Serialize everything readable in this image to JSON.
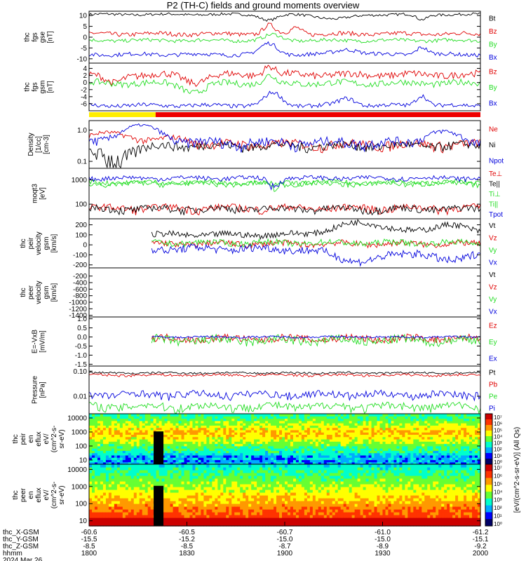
{
  "title": "P2 (TH-C) fields and ground moments overview",
  "colors": {
    "black": "#000000",
    "red": "#e00000",
    "green": "#22dd22",
    "blue": "#0000dd"
  },
  "status_bar": [
    {
      "color": "#ffee00",
      "from_fraction": 0.0,
      "to_fraction": 0.17
    },
    {
      "color": "#ee0000",
      "from_fraction": 0.17,
      "to_fraction": 1.0
    }
  ],
  "chart_data": [
    {
      "type": "line",
      "id": "fgs_gse",
      "ylabel": [
        "thc",
        "fgs",
        "gse",
        "[nT]"
      ],
      "ylim": [
        -12,
        12
      ],
      "scale": "linear",
      "yticks": [
        {
          "v": 10,
          "label": "10"
        },
        {
          "v": 5,
          "label": "5"
        },
        {
          "v": 0,
          "label": "0"
        },
        {
          "v": -5,
          "label": "-5"
        },
        {
          "v": -10,
          "label": "-10"
        }
      ],
      "series": [
        {
          "name": "Bt",
          "color": "#000000",
          "base": 10.5,
          "amp": 0.6,
          "events": [
            {
              "t": 0.46,
              "d": -2.5,
              "w": 0.03
            },
            {
              "t": 0.63,
              "d": -2.0,
              "w": 0.06
            },
            {
              "t": 0.85,
              "d": -2.5,
              "w": 0.02
            }
          ]
        },
        {
          "name": "Bz",
          "color": "#e00000",
          "base": 1.5,
          "amp": 1.0,
          "events": [
            {
              "t": 0.46,
              "d": 4.0,
              "w": 0.02
            },
            {
              "t": 0.53,
              "d": 3.0,
              "w": 0.02
            }
          ]
        },
        {
          "name": "By",
          "color": "#22dd22",
          "base": -1.5,
          "amp": 0.8,
          "events": [
            {
              "t": 0.47,
              "d": 2.5,
              "w": 0.03
            }
          ]
        },
        {
          "name": "Bx",
          "color": "#0000dd",
          "base": -8.0,
          "amp": 0.9,
          "events": [
            {
              "t": 0.46,
              "d": 5.0,
              "w": 0.03
            },
            {
              "t": 0.66,
              "d": 2.5,
              "w": 0.04
            },
            {
              "t": 0.85,
              "d": 3.5,
              "w": 0.02
            }
          ]
        }
      ]
    },
    {
      "type": "line",
      "id": "fgs_gsm",
      "ylabel": [
        "thc",
        "fgs",
        "gsm",
        "[nT]"
      ],
      "ylim": [
        -8,
        5.5
      ],
      "scale": "linear",
      "yticks": [
        {
          "v": 4,
          "label": "4"
        },
        {
          "v": 2,
          "label": "2"
        },
        {
          "v": 0,
          "label": "0"
        },
        {
          "v": -2,
          "label": "-2"
        },
        {
          "v": -4,
          "label": "-4"
        },
        {
          "v": -6,
          "label": "-6"
        }
      ],
      "series": [
        {
          "name": "Bz",
          "color": "#e00000",
          "base": 2.2,
          "amp": 1.0,
          "events": [
            {
              "t": 0.06,
              "d": -2.5,
              "w": 0.03
            },
            {
              "t": 0.27,
              "d": -2.0,
              "w": 0.04
            },
            {
              "t": 0.46,
              "d": 2.5,
              "w": 0.02
            }
          ]
        },
        {
          "name": "By",
          "color": "#22dd22",
          "base": -0.2,
          "amp": 0.9,
          "events": [
            {
              "t": 0.27,
              "d": -2.5,
              "w": 0.04
            },
            {
              "t": 0.46,
              "d": 2.0,
              "w": 0.02
            }
          ]
        },
        {
          "name": "Bx",
          "color": "#0000dd",
          "base": -6.5,
          "amp": 0.6,
          "events": [
            {
              "t": 0.47,
              "d": 3.5,
              "w": 0.03
            },
            {
              "t": 0.66,
              "d": 2.0,
              "w": 0.03
            },
            {
              "t": 0.85,
              "d": 3.0,
              "w": 0.02
            }
          ]
        }
      ]
    },
    {
      "type": "line",
      "id": "density",
      "ylabel": [
        "Density",
        "[1/cc]",
        "[cm-3]"
      ],
      "ylim": [
        0.06,
        2.0
      ],
      "scale": "log",
      "yticks": [
        {
          "v": 1.0,
          "label": "1.0"
        },
        {
          "v": 0.1,
          "label": "0.1"
        }
      ],
      "series": [
        {
          "name": "Ne",
          "color": "#e00000",
          "base": 0.35,
          "amp": 0.12,
          "events": [
            {
              "t": 0.05,
              "d": 0.45,
              "w": 0.08
            },
            {
              "t": 0.22,
              "d": 0.2,
              "w": 0.05
            }
          ]
        },
        {
          "name": "Ni",
          "color": "#000000",
          "base": 0.32,
          "amp": 0.1,
          "events": [
            {
              "t": 0.05,
              "d": -0.2,
              "w": 0.08
            }
          ]
        },
        {
          "name": "Npot",
          "color": "#0000dd",
          "base": 0.4,
          "amp": 0.15,
          "events": [
            {
              "t": 0.13,
              "d": 1.0,
              "w": 0.06
            },
            {
              "t": 0.9,
              "d": 0.5,
              "w": 0.05
            }
          ]
        }
      ]
    },
    {
      "type": "line",
      "id": "temperature",
      "ylabel": [
        "moqt3",
        "[eV]"
      ],
      "ylim": [
        25,
        3000
      ],
      "scale": "log",
      "yticks": [
        {
          "v": 1000,
          "label": "1000"
        },
        {
          "v": 100,
          "label": "100"
        }
      ],
      "series": [
        {
          "name": "Te⊥",
          "color": "#e00000",
          "base": 70,
          "amp": 25,
          "events": []
        },
        {
          "name": "Te||",
          "color": "#000000",
          "base": 65,
          "amp": 22,
          "events": []
        },
        {
          "name": "Ti⊥",
          "color": "#22dd22",
          "base": 800,
          "amp": 180,
          "events": [
            {
              "t": 0.47,
              "d": -400,
              "w": 0.02
            }
          ]
        },
        {
          "name": "Ti||",
          "color": "#22dd22",
          "base": 700,
          "amp": 160,
          "events": []
        },
        {
          "name": "Tpot",
          "color": "#0000dd",
          "base": 1200,
          "amp": 250,
          "events": [
            {
              "t": 0.47,
              "d": -600,
              "w": 0.02
            }
          ]
        }
      ]
    },
    {
      "type": "line",
      "id": "peir_velocity",
      "ylabel": [
        "thc",
        "peir",
        "velocity",
        "gsm",
        "[km/s]"
      ],
      "ylim": [
        -230,
        260
      ],
      "scale": "linear",
      "yticks": [
        {
          "v": 200,
          "label": "200"
        },
        {
          "v": 100,
          "label": "100"
        },
        {
          "v": 0,
          "label": "0"
        },
        {
          "v": -100,
          "label": "-100"
        },
        {
          "v": -200,
          "label": "-200"
        }
      ],
      "x_start_fraction": 0.16,
      "series": [
        {
          "name": "Vt",
          "color": "#000000",
          "base": 100,
          "amp": 30,
          "events": [
            {
              "t": 0.7,
              "d": 120,
              "w": 0.1
            },
            {
              "t": 0.92,
              "d": 110,
              "w": 0.06
            }
          ]
        },
        {
          "name": "Vz",
          "color": "#e00000",
          "base": 10,
          "amp": 30,
          "events": []
        },
        {
          "name": "Vy",
          "color": "#22dd22",
          "base": 20,
          "amp": 30,
          "events": []
        },
        {
          "name": "Vx",
          "color": "#0000dd",
          "base": -40,
          "amp": 40,
          "events": [
            {
              "t": 0.7,
              "d": -120,
              "w": 0.1
            },
            {
              "t": 0.92,
              "d": -130,
              "w": 0.06
            }
          ]
        }
      ]
    },
    {
      "type": "line",
      "id": "peer_velocity",
      "ylabel": [
        "thc",
        "peer",
        "velocity",
        "gsm",
        "[km/s]"
      ],
      "ylim": [
        -1450,
        50
      ],
      "scale": "linear",
      "yticks": [
        {
          "v": -200,
          "label": "-200"
        },
        {
          "v": -400,
          "label": "-400"
        },
        {
          "v": -600,
          "label": "-600"
        },
        {
          "v": -800,
          "label": "-800"
        },
        {
          "v": -1000,
          "label": "-1000"
        },
        {
          "v": -1200,
          "label": "-1200"
        },
        {
          "v": -1400,
          "label": "-1400"
        }
      ],
      "series": [
        {
          "name": "Vt",
          "color": "#000000",
          "empty": true
        },
        {
          "name": "Vz",
          "color": "#e00000",
          "empty": true
        },
        {
          "name": "Vy",
          "color": "#22dd22",
          "empty": true
        },
        {
          "name": "Vx",
          "color": "#0000dd",
          "empty": true
        }
      ]
    },
    {
      "type": "line",
      "id": "efield",
      "ylabel": [
        "E=-VxB",
        "[mV/m]"
      ],
      "ylim": [
        -1.6,
        1.1
      ],
      "scale": "linear",
      "yticks": [
        {
          "v": 1.0,
          "label": "1.0"
        },
        {
          "v": 0.5,
          "label": "0.5"
        },
        {
          "v": 0.0,
          "label": "0.0"
        },
        {
          "v": -0.5,
          "label": "-0.5"
        },
        {
          "v": -1.0,
          "label": "-1.0"
        },
        {
          "v": -1.5,
          "label": "-1.5"
        }
      ],
      "x_start_fraction": 0.16,
      "series": [
        {
          "name": "Ez",
          "color": "#e00000",
          "base": -0.1,
          "amp": 0.2,
          "events": []
        },
        {
          "name": "Ey",
          "color": "#22dd22",
          "base": -0.2,
          "amp": 0.25,
          "events": []
        },
        {
          "name": "Ex",
          "color": "#0000dd",
          "base": 0.0,
          "amp": 0.05,
          "events": []
        }
      ]
    },
    {
      "type": "line",
      "id": "pressure",
      "ylabel": [
        "Pressure",
        "[nPa]"
      ],
      "ylim": [
        0.002,
        0.16
      ],
      "scale": "log",
      "yticks": [
        {
          "v": 0.1,
          "label": "0.10"
        },
        {
          "v": 0.01,
          "label": "0.01"
        }
      ],
      "series": [
        {
          "name": "Pt",
          "color": "#000000",
          "base": 0.085,
          "amp": 0.008,
          "events": []
        },
        {
          "name": "Pb",
          "color": "#e00000",
          "base": 0.07,
          "amp": 0.008,
          "events": []
        },
        {
          "name": "Pe",
          "color": "#22dd22",
          "base": 0.004,
          "amp": 0.0015,
          "events": []
        },
        {
          "name": "Pi",
          "color": "#0000dd",
          "base": 0.012,
          "amp": 0.004,
          "events": []
        }
      ]
    },
    {
      "type": "heatmap",
      "id": "peir_eflux",
      "ylabel": [
        "thc",
        "peir",
        "en",
        "eflux",
        "eV/",
        "(cm^2-s-",
        "sr-eV)"
      ],
      "ylim": [
        5,
        20000
      ],
      "scale": "log",
      "yticks": [
        {
          "v": 10000,
          "label": "10000"
        },
        {
          "v": 1000,
          "label": "1000"
        },
        {
          "v": 100,
          "label": "100"
        },
        {
          "v": 10,
          "label": "10"
        }
      ]
    },
    {
      "type": "heatmap",
      "id": "peer_eflux",
      "ylabel": [
        "thc",
        "peer",
        "en",
        "eflux",
        "eV/",
        "(cm^2-s-",
        "sr-eV)"
      ],
      "ylim": [
        5,
        20000
      ],
      "scale": "log",
      "yticks": [
        {
          "v": 10000,
          "label": "10000"
        },
        {
          "v": 1000,
          "label": "1000"
        },
        {
          "v": 100,
          "label": "100"
        },
        {
          "v": 10,
          "label": "10"
        }
      ]
    }
  ],
  "colorbar": {
    "label": "[eV/(cm^2-s-sr-eV)] (All Qs)",
    "ticks_top": [
      "10⁷",
      "10⁶",
      "10⁵",
      "10⁴",
      "10³",
      "10²",
      "10¹",
      "10⁰"
    ],
    "ticks_bottom": [
      "10⁷",
      "10⁶",
      "10⁵",
      "10⁴",
      "10³",
      "10²",
      "10¹",
      "10⁰"
    ]
  },
  "x_axis": {
    "time_labels": [
      "1800",
      "1830",
      "1900",
      "1930",
      "2000"
    ],
    "rows": [
      {
        "label": "thc_X-GSM",
        "values": [
          "-60.6",
          "-60.5",
          "-60.7",
          "-61.0",
          "-61.2"
        ]
      },
      {
        "label": "thc_Y-GSM",
        "values": [
          "-15.5",
          "-15.2",
          "-15.0",
          "-15.0",
          "-15.1"
        ]
      },
      {
        "label": "thc_Z-GSM",
        "values": [
          "-8.5",
          "-8.5",
          "-8.7",
          "-8.9",
          "-9.2"
        ]
      },
      {
        "label": "hhmm",
        "values": [
          "1800",
          "1830",
          "1900",
          "1930",
          "2000"
        ]
      }
    ],
    "date": "2024 Mar 26"
  }
}
